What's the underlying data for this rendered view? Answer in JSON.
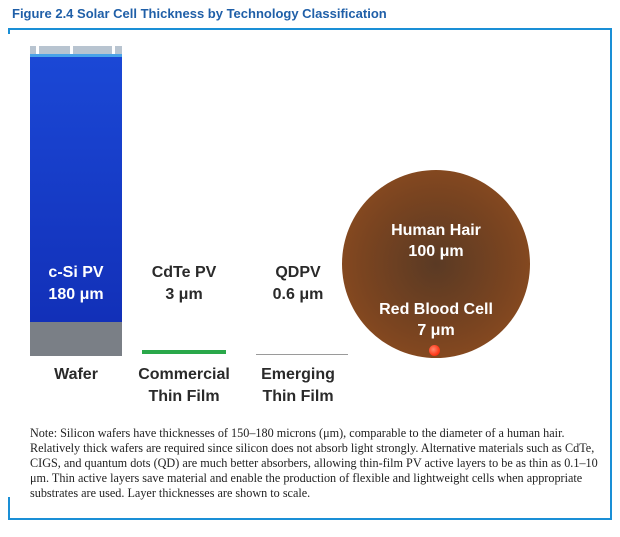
{
  "title": "Figure 2.4  Solar Cell Thickness by Technology Classification",
  "items": [
    {
      "name": "c-Si PV",
      "thickness": "180 μm",
      "category": "Wafer"
    },
    {
      "name": "CdTe PV",
      "thickness": "3 μm",
      "category_line1": "Commercial",
      "category_line2": "Thin Film"
    },
    {
      "name": "QDPV",
      "thickness": "0.6 μm",
      "category_line1": "Emerging",
      "category_line2": "Thin Film"
    }
  ],
  "hair": {
    "name": "Human Hair",
    "size": "100 μm"
  },
  "rbc": {
    "name": "Red Blood Cell",
    "size": "7 μm"
  },
  "note": "Note: Silicon wafers have thicknesses of 150–180 microns (μm), comparable to the diameter of a human hair. Relatively thick wafers are required since silicon does not absorb light strongly. Alternative materials such as CdTe, CIGS, and quantum dots (QD) are much better absorbers, allowing thin-film PV active layers to be as thin as 0.1–10 μm. Thin active layers save material and enable the production of flexible and lightweight cells when appropriate substrates are used. Layer thicknesses are shown to scale.",
  "colors": {
    "accent": "#1a8fd6",
    "title": "#1f5fa8",
    "wafer": "#1230b8",
    "wafer_base": "#7a7f86",
    "cdte": "#2aa84a",
    "hair": "#7a4420",
    "rbc": "#ff3a1a"
  }
}
